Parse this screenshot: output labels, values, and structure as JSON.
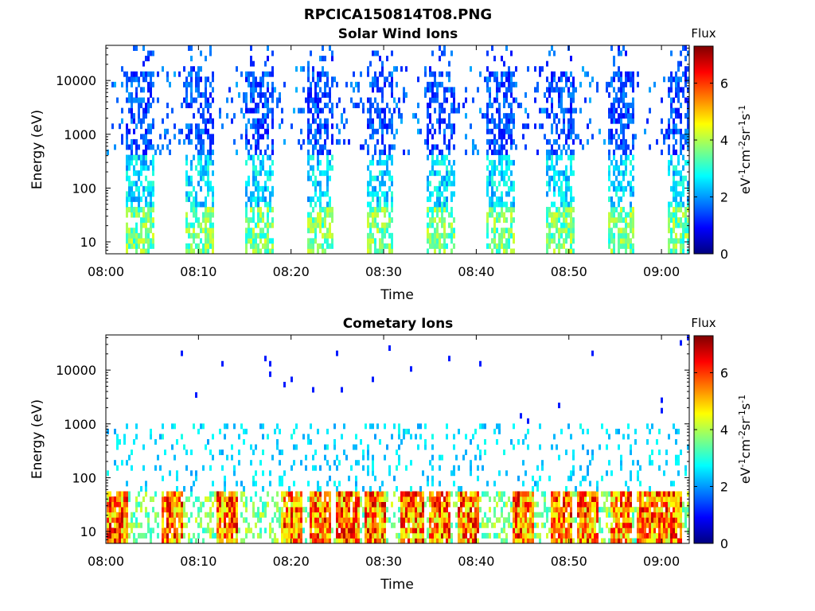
{
  "figure": {
    "title": "RPCICA150814T08.PNG"
  },
  "colorbar": {
    "label_html_plain": "eV-1cm-2sr-1s-1",
    "ticks": [
      0,
      2,
      4,
      6
    ]
  },
  "chart_data": [
    {
      "type": "heatmap",
      "title": "Solar Wind Ions",
      "xlabel": "Time",
      "ylabel": "Energy (eV)",
      "colorbar_title": "Flux",
      "colorbar_label": "eV-1cm-2sr-1s-1",
      "colorbar_range": [
        0,
        7.3
      ],
      "colorbar_ticks": [
        "0",
        "2",
        "4",
        "6"
      ],
      "x_ticks": [
        "08:00",
        "08:10",
        "08:20",
        "08:30",
        "08:40",
        "08:50",
        "09:00"
      ],
      "x_range_minutes": [
        0,
        63
      ],
      "y_scale": "log",
      "y_ticks": [
        "10",
        "100",
        "1000",
        "10000"
      ],
      "y_range": [
        6,
        45000
      ],
      "scan_minutes": [
        3.5,
        10,
        16.5,
        23,
        29.5,
        36,
        42.5,
        49,
        55.5,
        62
      ],
      "scan_width_minutes": 3,
      "grid": false
    },
    {
      "type": "heatmap",
      "title": "Cometary Ions",
      "xlabel": "Time",
      "ylabel": "Energy (eV)",
      "colorbar_title": "Flux",
      "colorbar_label": "eV-1cm-2sr-1s-1",
      "colorbar_range": [
        0,
        7.3
      ],
      "colorbar_ticks": [
        "0",
        "2",
        "4",
        "6"
      ],
      "x_ticks": [
        "08:00",
        "08:10",
        "08:20",
        "08:30",
        "08:40",
        "08:50",
        "09:00"
      ],
      "x_range_minutes": [
        0,
        63
      ],
      "y_scale": "log",
      "y_ticks": [
        "10",
        "100",
        "1000",
        "10000"
      ],
      "y_range": [
        6,
        45000
      ],
      "scan_minutes": [
        1,
        7,
        13,
        20,
        23,
        26,
        29,
        33,
        36,
        39,
        45,
        49,
        52,
        55.5,
        58.5,
        61
      ],
      "grid": false
    }
  ]
}
